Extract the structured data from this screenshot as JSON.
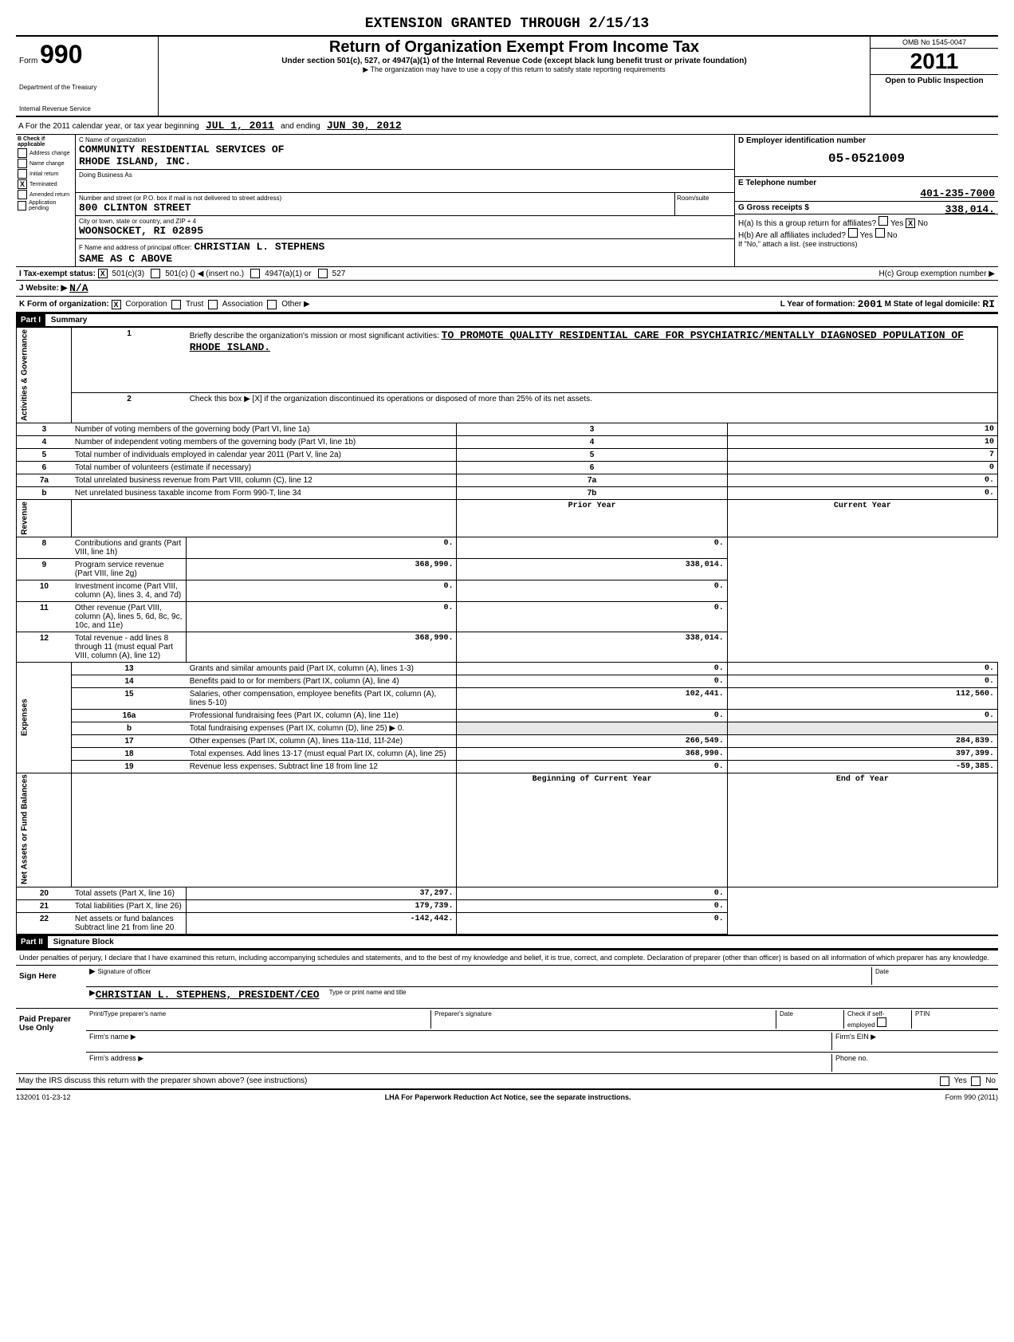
{
  "extension_header": "EXTENSION GRANTED THROUGH 2/15/13",
  "form": {
    "number": "990",
    "prefix": "Form",
    "dept": "Department of the Treasury",
    "irs": "Internal Revenue Service"
  },
  "title": {
    "main": "Return of Organization Exempt From Income Tax",
    "sub": "Under section 501(c), 527, or 4947(a)(1) of the Internal Revenue Code (except black lung benefit trust or private foundation)",
    "note": "▶ The organization may have to use a copy of this return to satisfy state reporting requirements"
  },
  "omb": {
    "number": "OMB No 1545-0047",
    "year": "2011",
    "open": "Open to Public Inspection"
  },
  "row_a": {
    "prefix": "A For the 2011 calendar year, or tax year beginning",
    "begin": "JUL 1, 2011",
    "mid": "and ending",
    "end": "JUN 30, 2012"
  },
  "section_b": {
    "header": "B Check if applicable",
    "items": [
      "Address change",
      "Name change",
      "Initial return",
      "Terminated",
      "Amended return",
      "Application pending"
    ],
    "checked_index": 3
  },
  "section_c": {
    "name_label": "C Name of organization",
    "name1": "COMMUNITY RESIDENTIAL SERVICES OF",
    "name2": "RHODE ISLAND, INC.",
    "dba_label": "Doing Business As",
    "street_label": "Number and street (or P.O. box if mail is not delivered to street address)",
    "street": "800 CLINTON STREET",
    "room_label": "Room/suite",
    "city_label": "City or town, state or country, and ZIP + 4",
    "city": "WOONSOCKET, RI  02895",
    "officer_label": "F Name and address of principal officer:",
    "officer": "CHRISTIAN L. STEPHENS",
    "officer_addr": "SAME AS C ABOVE"
  },
  "section_d": {
    "ein_label": "D Employer identification number",
    "ein": "05-0521009",
    "phone_label": "E Telephone number",
    "phone": "401-235-7000",
    "gross_label": "G Gross receipts $",
    "gross": "338,014.",
    "h_a": "H(a) Is this a group return for affiliates?",
    "h_a_no": "No",
    "h_a_yes": "Yes",
    "h_b": "H(b) Are all affiliates included?",
    "h_b_note": "If \"No,\" attach a list. (see instructions)",
    "h_c": "H(c) Group exemption number ▶"
  },
  "status": {
    "label": "I Tax-exempt status:",
    "opt1": "501(c)(3)",
    "opt2": "501(c) (",
    "opt2_note": ") ◀ (insert no.)",
    "opt3": "4947(a)(1) or",
    "opt4": "527"
  },
  "website": {
    "label": "J Website: ▶",
    "value": "N/A"
  },
  "form_org": {
    "label": "K Form of organization:",
    "corp": "Corporation",
    "trust": "Trust",
    "assoc": "Association",
    "other": "Other ▶",
    "year_label": "L Year of formation:",
    "year": "2001",
    "state_label": "M State of legal domicile:",
    "state": "RI"
  },
  "part1": {
    "header": "Part I",
    "title": "Summary",
    "side_labels": [
      "Activities & Governance",
      "Revenue",
      "Expenses",
      "Net Assets or Fund Balances"
    ],
    "line1_label": "Briefly describe the organization's mission or most significant activities:",
    "line1_value": "TO PROMOTE QUALITY RESIDENTIAL CARE FOR PSYCHIATRIC/MENTALLY DIAGNOSED POPULATION OF RHODE ISLAND.",
    "line2": "Check this box ▶ [X] if the organization discontinued its operations or disposed of more than 25% of its net assets.",
    "lines_gov": [
      {
        "n": "3",
        "desc": "Number of voting members of the governing body (Part VI, line 1a)",
        "box": "3",
        "val": "10"
      },
      {
        "n": "4",
        "desc": "Number of independent voting members of the governing body (Part VI, line 1b)",
        "box": "4",
        "val": "10"
      },
      {
        "n": "5",
        "desc": "Total number of individuals employed in calendar year 2011 (Part V, line 2a)",
        "box": "5",
        "val": "7"
      },
      {
        "n": "6",
        "desc": "Total number of volunteers (estimate if necessary)",
        "box": "6",
        "val": "0"
      },
      {
        "n": "7a",
        "desc": "Total unrelated business revenue from Part VIII, column (C), line 12",
        "box": "7a",
        "val": "0."
      },
      {
        "n": "b",
        "desc": "Net unrelated business taxable income from Form 990-T, line 34",
        "box": "7b",
        "val": "0."
      }
    ],
    "col_headers": {
      "prior": "Prior Year",
      "current": "Current Year"
    },
    "lines_rev": [
      {
        "n": "8",
        "desc": "Contributions and grants (Part VIII, line 1h)",
        "prior": "0.",
        "current": "0."
      },
      {
        "n": "9",
        "desc": "Program service revenue (Part VIII, line 2g)",
        "prior": "368,990.",
        "current": "338,014."
      },
      {
        "n": "10",
        "desc": "Investment income (Part VIII, column (A), lines 3, 4, and 7d)",
        "prior": "0.",
        "current": "0."
      },
      {
        "n": "11",
        "desc": "Other revenue (Part VIII, column (A), lines 5, 6d, 8c, 9c, 10c, and 11e)",
        "prior": "0.",
        "current": "0."
      },
      {
        "n": "12",
        "desc": "Total revenue - add lines 8 through 11 (must equal Part VIII, column (A), line 12)",
        "prior": "368,990.",
        "current": "338,014."
      }
    ],
    "lines_exp": [
      {
        "n": "13",
        "desc": "Grants and similar amounts paid (Part IX, column (A), lines 1-3)",
        "prior": "0.",
        "current": "0."
      },
      {
        "n": "14",
        "desc": "Benefits paid to or for members (Part IX, column (A), line 4)",
        "prior": "0.",
        "current": "0."
      },
      {
        "n": "15",
        "desc": "Salaries, other compensation, employee benefits (Part IX, column (A), lines 5-10)",
        "prior": "102,441.",
        "current": "112,560."
      },
      {
        "n": "16a",
        "desc": "Professional fundraising fees (Part IX, column (A), line 11e)",
        "prior": "0.",
        "current": "0."
      },
      {
        "n": "b",
        "desc": "Total fundraising expenses (Part IX, column (D), line 25) ▶            0.",
        "prior": "",
        "current": "",
        "shaded": true
      },
      {
        "n": "17",
        "desc": "Other expenses (Part IX, column (A), lines 11a-11d, 11f-24e)",
        "prior": "266,549.",
        "current": "284,839."
      },
      {
        "n": "18",
        "desc": "Total expenses. Add lines 13-17 (must equal Part IX, column (A), line 25)",
        "prior": "368,990.",
        "current": "397,399."
      },
      {
        "n": "19",
        "desc": "Revenue less expenses. Subtract line 18 from line 12",
        "prior": "0.",
        "current": "-59,385."
      }
    ],
    "col_headers2": {
      "begin": "Beginning of Current Year",
      "end": "End of Year"
    },
    "lines_net": [
      {
        "n": "20",
        "desc": "Total assets (Part X, line 16)",
        "prior": "37,297.",
        "current": "0."
      },
      {
        "n": "21",
        "desc": "Total liabilities (Part X, line 26)",
        "prior": "179,739.",
        "current": "0."
      },
      {
        "n": "22",
        "desc": "Net assets or fund balances  Subtract line 21 from line 20",
        "prior": "-142,442.",
        "current": "0."
      }
    ]
  },
  "part2": {
    "header": "Part II",
    "title": "Signature Block",
    "perjury": "Under penalties of perjury, I declare that I have examined this return, including accompanying schedules and statements, and to the best of my knowledge and belief, it is true, correct, and complete. Declaration of preparer (other than officer) is based on all information of which preparer has any knowledge.",
    "sign_here": "Sign Here",
    "sig_label": "Signature of officer",
    "date_label": "Date",
    "officer_name": "CHRISTIAN L. STEPHENS, PRESIDENT/CEO",
    "type_label": "Type or print name and title",
    "paid": "Paid Preparer Use Only",
    "prep_name_label": "Print/Type preparer's name",
    "prep_sig_label": "Preparer's signature",
    "prep_date": "Date",
    "check_label": "Check if self-employed",
    "ptin": "PTIN",
    "firm_name": "Firm's name ▶",
    "firm_addr": "Firm's address ▶",
    "firm_ein": "Firm's EIN ▶",
    "phone": "Phone no.",
    "discuss": "May the IRS discuss this return with the preparer shown above? (see instructions)",
    "yes": "Yes",
    "no": "No"
  },
  "footer": {
    "code": "132001  01-23-12",
    "lha": "LHA  For Paperwork Reduction Act Notice, see the separate instructions.",
    "form": "Form 990 (2011)"
  }
}
